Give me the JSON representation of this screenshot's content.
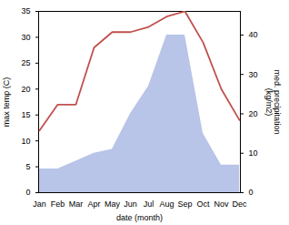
{
  "chart_data": {
    "type": "line",
    "xlabel": "date (month)",
    "ylabel": "max temp (C)",
    "y2label": "med. precipitation\n(kg/m2)",
    "categories": [
      "Jan",
      "Feb",
      "Mar",
      "Apr",
      "May",
      "Jun",
      "Jul",
      "Aug",
      "Sep",
      "Oct",
      "Nov",
      "Dec"
    ],
    "series": [
      {
        "type": "area",
        "color": "#b8c4e8",
        "axis": "y2",
        "values": [
          6,
          6,
          8,
          10,
          11,
          20,
          27,
          40,
          40,
          15,
          7,
          7
        ]
      },
      {
        "type": "line",
        "color": "#c0504d",
        "values": [
          12,
          17,
          17,
          28,
          31,
          31,
          32,
          34,
          35,
          29,
          20,
          14
        ]
      }
    ],
    "ylim": [
      0,
      35
    ],
    "yticks": [
      0,
      5,
      10,
      15,
      20,
      25,
      30,
      35
    ],
    "y2lim": [
      0,
      46
    ],
    "y2ticks": [
      0,
      10,
      20,
      30,
      40
    ],
    "grid": false
  }
}
